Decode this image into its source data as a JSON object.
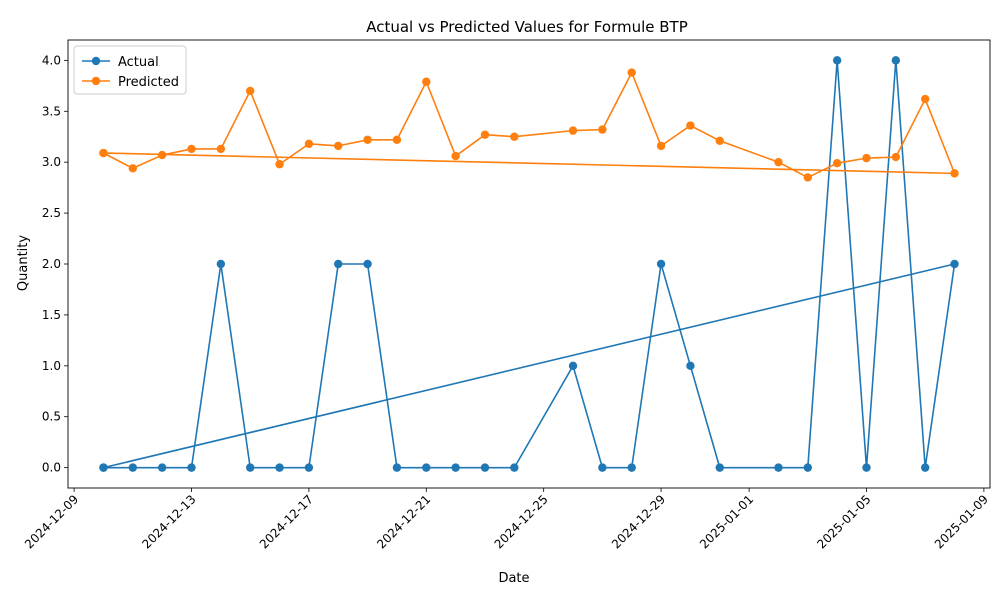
{
  "chart_data": {
    "type": "line",
    "title": "Actual vs Predicted Values for Formule BTP",
    "xlabel": "Date",
    "ylabel": "Quantity",
    "ylim": [
      -0.2,
      4.2
    ],
    "xlim": [
      "2024-12-08T19:00",
      "2025-01-09T05:00"
    ],
    "y_ticks": [
      0.0,
      0.5,
      1.0,
      1.5,
      2.0,
      2.5,
      3.0,
      3.5,
      4.0
    ],
    "y_tick_labels": [
      "0.0",
      "0.5",
      "1.0",
      "1.5",
      "2.0",
      "2.5",
      "3.0",
      "3.5",
      "4.0"
    ],
    "x_ticks": [
      "2024-12-09",
      "2024-12-13",
      "2024-12-17",
      "2024-12-21",
      "2024-12-25",
      "2024-12-29",
      "2025-01-01",
      "2025-01-05",
      "2025-01-09"
    ],
    "legend_position": "top-left",
    "series": [
      {
        "name": "Actual",
        "color": "#1f77b4",
        "points": [
          [
            "2024-12-10",
            0
          ],
          [
            "2024-12-11",
            0
          ],
          [
            "2024-12-12",
            0
          ],
          [
            "2024-12-13",
            0
          ],
          [
            "2024-12-14",
            2
          ],
          [
            "2024-12-15",
            0
          ],
          [
            "2024-12-16",
            0
          ],
          [
            "2024-12-17",
            0
          ],
          [
            "2024-12-18",
            2
          ],
          [
            "2024-12-19",
            2
          ],
          [
            "2024-12-20",
            0
          ],
          [
            "2024-12-21",
            0
          ],
          [
            "2024-12-22",
            0
          ],
          [
            "2024-12-23",
            0
          ],
          [
            "2024-12-24",
            0
          ],
          [
            "2024-12-26",
            1
          ],
          [
            "2024-12-27",
            0
          ],
          [
            "2024-12-28",
            0
          ],
          [
            "2024-12-29",
            2
          ],
          [
            "2024-12-30",
            1
          ],
          [
            "2024-12-31",
            0
          ],
          [
            "2025-01-02",
            0
          ],
          [
            "2025-01-03",
            0
          ],
          [
            "2025-01-04",
            4
          ],
          [
            "2025-01-05",
            0
          ],
          [
            "2025-01-06",
            4
          ],
          [
            "2025-01-07",
            0
          ],
          [
            "2025-01-08",
            2
          ],
          [
            "2024-12-10",
            0
          ]
        ]
      },
      {
        "name": "Predicted",
        "color": "#ff7f0e",
        "points": [
          [
            "2024-12-10",
            3.09
          ],
          [
            "2024-12-11",
            2.94
          ],
          [
            "2024-12-12",
            3.07
          ],
          [
            "2024-12-13",
            3.13
          ],
          [
            "2024-12-14",
            3.13
          ],
          [
            "2024-12-15",
            3.7
          ],
          [
            "2024-12-16",
            2.98
          ],
          [
            "2024-12-17",
            3.18
          ],
          [
            "2024-12-18",
            3.16
          ],
          [
            "2024-12-19",
            3.22
          ],
          [
            "2024-12-20",
            3.22
          ],
          [
            "2024-12-21",
            3.79
          ],
          [
            "2024-12-22",
            3.06
          ],
          [
            "2024-12-23",
            3.27
          ],
          [
            "2024-12-24",
            3.25
          ],
          [
            "2024-12-26",
            3.31
          ],
          [
            "2024-12-27",
            3.32
          ],
          [
            "2024-12-28",
            3.88
          ],
          [
            "2024-12-29",
            3.16
          ],
          [
            "2024-12-30",
            3.36
          ],
          [
            "2024-12-31",
            3.21
          ],
          [
            "2025-01-02",
            3.0
          ],
          [
            "2025-01-03",
            2.85
          ],
          [
            "2025-01-04",
            2.99
          ],
          [
            "2025-01-05",
            3.04
          ],
          [
            "2025-01-06",
            3.05
          ],
          [
            "2025-01-07",
            3.62
          ],
          [
            "2025-01-08",
            2.89
          ],
          [
            "2024-12-10",
            3.09
          ]
        ]
      }
    ]
  }
}
